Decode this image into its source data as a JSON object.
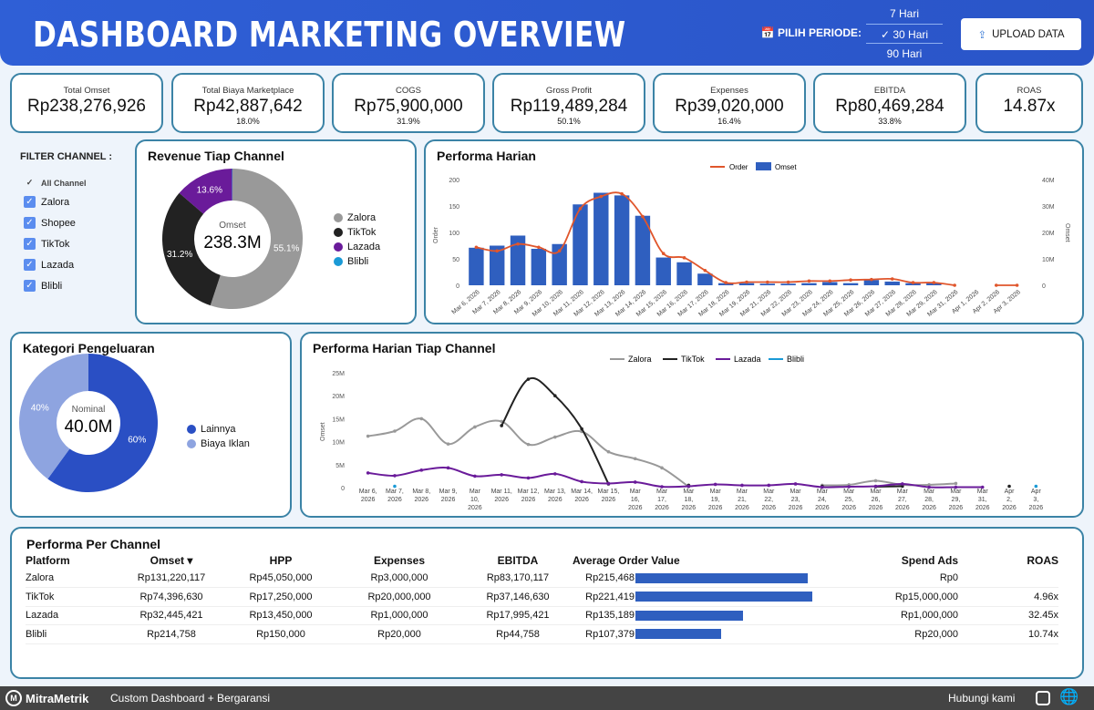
{
  "header": {
    "title": "DASHBOARD MARKETING OVERVIEW",
    "periode_label": "PILIH PERIODE:",
    "period_options": [
      "7 Hari",
      "30 Hari",
      "90 Hari"
    ],
    "selected_period": "30 Hari",
    "upload_label": "UPLOAD DATA"
  },
  "kpis": [
    {
      "label": "Total Omset",
      "value": "Rp238,276,926",
      "pct": ""
    },
    {
      "label": "Total Biaya Marketplace",
      "value": "Rp42,887,642",
      "pct": "18.0%"
    },
    {
      "label": "COGS",
      "value": "Rp75,900,000",
      "pct": "31.9%"
    },
    {
      "label": "Gross Profit",
      "value": "Rp119,489,284",
      "pct": "50.1%"
    },
    {
      "label": "Expenses",
      "value": "Rp39,020,000",
      "pct": "16.4%"
    },
    {
      "label": "EBITDA",
      "value": "Rp80,469,284",
      "pct": "33.8%"
    },
    {
      "label": "ROAS",
      "value": "14.87x",
      "pct": ""
    }
  ],
  "filter": {
    "title": "FILTER CHANNEL :",
    "all_label": "All Channel",
    "channels": [
      "Zalora",
      "Shopee",
      "TikTok",
      "Lazada",
      "Blibli"
    ]
  },
  "colors": {
    "zalora": "#999999",
    "tiktok": "#222222",
    "lazada": "#6a1b9a",
    "blibli": "#1a9ad6",
    "bar": "#2f5fbf",
    "order": "#e0562c",
    "lainnya": "#2a4fc4",
    "iklan": "#8ea4e0"
  },
  "chart_data": [
    {
      "type": "pie",
      "title": "Revenue Tiap Channel",
      "center_label": "Omset",
      "center_value": "238.3M",
      "labels": [
        "Zalora",
        "TikTok",
        "Lazada",
        "Blibli"
      ],
      "values": [
        55.1,
        31.2,
        13.6,
        0.1
      ],
      "data_labels": [
        "55.1%",
        "31.2%",
        "13.6%",
        ""
      ]
    },
    {
      "type": "bar",
      "title": "Performa Harian",
      "ylabel": "Order",
      "y2label": "Omset",
      "ylim": [
        0,
        200
      ],
      "y2lim": [
        0,
        40000000
      ],
      "yticks": [
        "0",
        "50",
        "100",
        "150",
        "200"
      ],
      "y2ticks": [
        "0",
        "10M",
        "20M",
        "30M",
        "40M"
      ],
      "categories": [
        "Mar 6, 2026",
        "Mar 7, 2026",
        "Mar 8, 2026",
        "Mar 9, 2026",
        "Mar 10, 2026",
        "Mar 11, 2026",
        "Mar 12, 2026",
        "Mar 13, 2026",
        "Mar 14, 2026",
        "Mar 15, 2026",
        "Mar 16, 2026",
        "Mar 17, 2026",
        "Mar 18, 2026",
        "Mar 19, 2026",
        "Mar 21, 2026",
        "Mar 22, 2026",
        "Mar 23, 2026",
        "Mar 24, 2026",
        "Mar 25, 2026",
        "Mar 26, 2026",
        "Mar 27, 2026",
        "Mar 28, 2026",
        "Mar 29, 2026",
        "Mar 31, 2026",
        "Apr 1, 2026",
        "Apr 2, 2026",
        "Apr 3, 2026"
      ],
      "series": [
        {
          "name": "Omset",
          "type": "bar",
          "values": [
            14.2,
            15,
            18.8,
            13.8,
            15.6,
            30.6,
            35,
            34,
            26.3,
            10.5,
            8.7,
            4.4,
            0.8,
            0.8,
            0.6,
            0.6,
            0.8,
            1.2,
            0.8,
            2,
            1.4,
            0.8,
            0.8,
            0,
            0,
            0,
            0
          ]
        },
        {
          "name": "Order",
          "type": "line",
          "values": [
            72,
            65,
            78,
            72,
            65,
            145,
            168,
            173,
            130,
            60,
            52,
            28,
            5,
            6,
            6,
            6,
            8,
            8,
            10,
            11,
            12,
            5,
            5,
            0,
            null,
            0,
            0
          ]
        }
      ]
    },
    {
      "type": "pie",
      "title": "Kategori Pengeluaran",
      "center_label": "Nominal",
      "center_value": "40.0M",
      "labels": [
        "Lainnya",
        "Biaya Iklan"
      ],
      "values": [
        60,
        40
      ],
      "data_labels": [
        "60%",
        "40%"
      ]
    },
    {
      "type": "line",
      "title": "Performa Harian Tiap Channel",
      "ylabel": "Omset",
      "ylim": [
        0,
        25
      ],
      "yticks": [
        "0",
        "5M",
        "10M",
        "15M",
        "20M",
        "25M"
      ],
      "categories": [
        "Mar 6, 2026",
        "Mar 7, 2026",
        "Mar 8, 2026",
        "Mar 9, 2026",
        "Mar 10, 2026",
        "Mar 11, 2026",
        "Mar 12, 2026",
        "Mar 13, 2026",
        "Mar 14, 2026",
        "Mar 15, 2026",
        "Mar 16, 2026",
        "Mar 17, 2026",
        "Mar 18, 2026",
        "Mar 19, 2026",
        "Mar 21, 2026",
        "Mar 22, 2026",
        "Mar 23, 2026",
        "Mar 24, 2026",
        "Mar 25, 2026",
        "Mar 26, 2026",
        "Mar 27, 2026",
        "Mar 28, 2026",
        "Mar 29, 2026",
        "Mar 31, 2026",
        "Apr 2, 2026",
        "Apr 3, 2026"
      ],
      "series": [
        {
          "name": "Zalora",
          "values": [
            11.2,
            12.3,
            15,
            9.5,
            13.2,
            14.4,
            9.4,
            11,
            12.2,
            7.8,
            6.3,
            4.3,
            0.2,
            null,
            null,
            null,
            null,
            0.5,
            0.6,
            1.5,
            0.6,
            0.6,
            0.9,
            null,
            null,
            null
          ]
        },
        {
          "name": "TikTok",
          "values": [
            null,
            null,
            null,
            null,
            null,
            13.5,
            23.6,
            20,
            12.8,
            0.8,
            null,
            null,
            0.5,
            null,
            null,
            null,
            null,
            0.3,
            null,
            0.2,
            0.3,
            null,
            null,
            null,
            0.3,
            null
          ]
        },
        {
          "name": "Lazada",
          "values": [
            3.2,
            2.6,
            3.8,
            4.3,
            2.5,
            2.8,
            2.1,
            3,
            1.3,
            0.9,
            1.2,
            0.2,
            0.3,
            0.7,
            0.5,
            0.5,
            0.8,
            0.1,
            0.2,
            0.3,
            0.8,
            0.1,
            0.1,
            0.1,
            null,
            null
          ]
        },
        {
          "name": "Blibli",
          "values": [
            null,
            0.3,
            null,
            null,
            null,
            null,
            null,
            null,
            null,
            null,
            null,
            null,
            null,
            null,
            null,
            null,
            null,
            null,
            null,
            null,
            null,
            null,
            null,
            null,
            null,
            0.3
          ]
        }
      ]
    }
  ],
  "table": {
    "title": "Performa Per Channel",
    "headers": [
      "Platform",
      "Omset ▾",
      "HPP",
      "Expenses",
      "EBITDA",
      "Average Order Value",
      "Spend Ads",
      "ROAS"
    ],
    "rows": [
      [
        "Zalora",
        "Rp131,220,117",
        "Rp45,050,000",
        "Rp3,000,000",
        "Rp83,170,117",
        "Rp215,468",
        "Rp0",
        ""
      ],
      [
        "TikTok",
        "Rp74,396,630",
        "Rp17,250,000",
        "Rp20,000,000",
        "Rp37,146,630",
        "Rp221,419",
        "Rp15,000,000",
        "4.96x"
      ],
      [
        "Lazada",
        "Rp32,445,421",
        "Rp13,450,000",
        "Rp1,000,000",
        "Rp17,995,421",
        "Rp135,189",
        "Rp1,000,000",
        "32.45x"
      ],
      [
        "Blibli",
        "Rp214,758",
        "Rp150,000",
        "Rp20,000",
        "Rp44,758",
        "Rp107,379",
        "Rp20,000",
        "10.74x"
      ]
    ],
    "aov_values": [
      215468,
      221419,
      135189,
      107379
    ]
  },
  "footer": {
    "brand": "MitraMetrik",
    "tagline": "Custom Dashboard + Bergaransi",
    "contact": "Hubungi kami"
  }
}
